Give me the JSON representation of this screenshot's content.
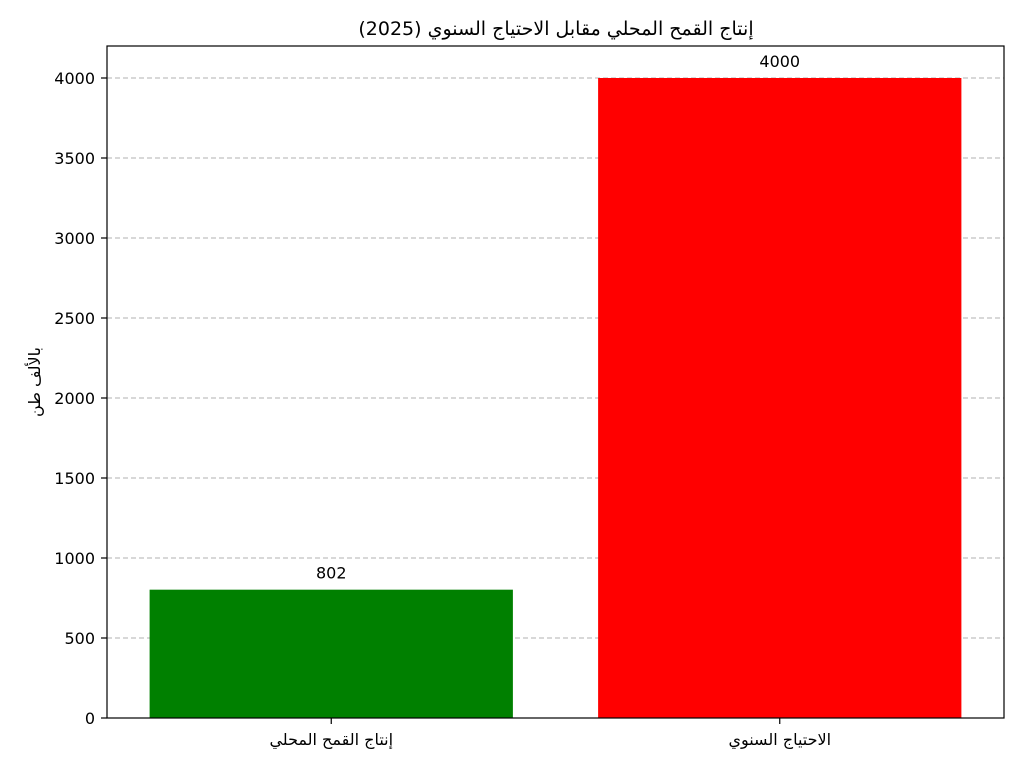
{
  "chart_data": {
    "type": "bar",
    "title": "إنتاج القمح المحلي مقابل الاحتياج السنوي (2025)",
    "xlabel": "",
    "ylabel": "بالألف طن",
    "categories": [
      "إنتاج القمح المحلي",
      "الاحتياج السنوي"
    ],
    "values": [
      802,
      4000
    ],
    "data_labels": [
      "802",
      "4000"
    ],
    "colors": [
      "#008000",
      "#ff0000"
    ],
    "ylim": [
      0,
      4200
    ],
    "yticks": [
      0,
      500,
      1000,
      1500,
      2000,
      2500,
      3000,
      3500,
      4000
    ],
    "grid": "horizontal-dashed",
    "legend": "none"
  }
}
